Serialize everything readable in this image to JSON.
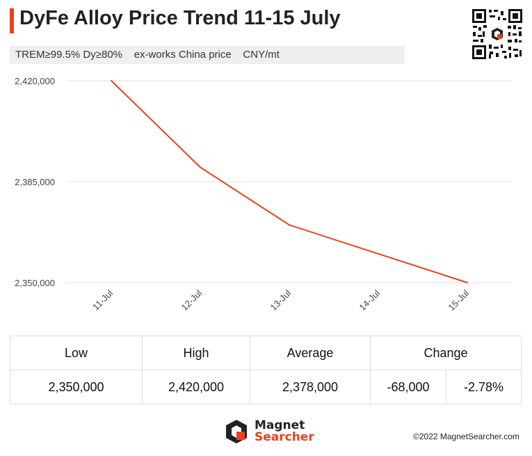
{
  "header": {
    "title_main": "DyFe Alloy Price Trend ",
    "title_date": "11-15 July",
    "subtitle": "TREM≥99.5% Dy≥80%    ex-works China price    CNY/mt"
  },
  "colors": {
    "accent": "#e8421a",
    "line": "#e8421a",
    "grid": "#dddddd",
    "subtitle_bg": "#efefef"
  },
  "chart_data": {
    "type": "line",
    "categories": [
      "11-Jul",
      "12-Jul",
      "13-Jul",
      "14-Jul",
      "15-Jul"
    ],
    "series": [
      {
        "values": [
          2420000,
          2390000,
          2370000,
          2360000,
          2350000
        ]
      }
    ],
    "y_ticks": [
      "2,420,000",
      "2,385,000",
      "2,350,000"
    ],
    "ylim": [
      2350000,
      2420000
    ],
    "grid": true,
    "legend": "none"
  },
  "stats": {
    "headers": [
      "Low",
      "High",
      "Average",
      "Change"
    ],
    "low": "2,350,000",
    "high": "2,420,000",
    "average": "2,378,000",
    "change_abs": "-68,000",
    "change_pct": "-2.78%"
  },
  "footer": {
    "logo_line1": "Magnet",
    "logo_line2": "Searcher",
    "copyright": "©2022 MagnetSearcher.com"
  },
  "icons": {
    "qr": "qr-code-icon",
    "logo": "magnet-searcher-logo-icon"
  }
}
